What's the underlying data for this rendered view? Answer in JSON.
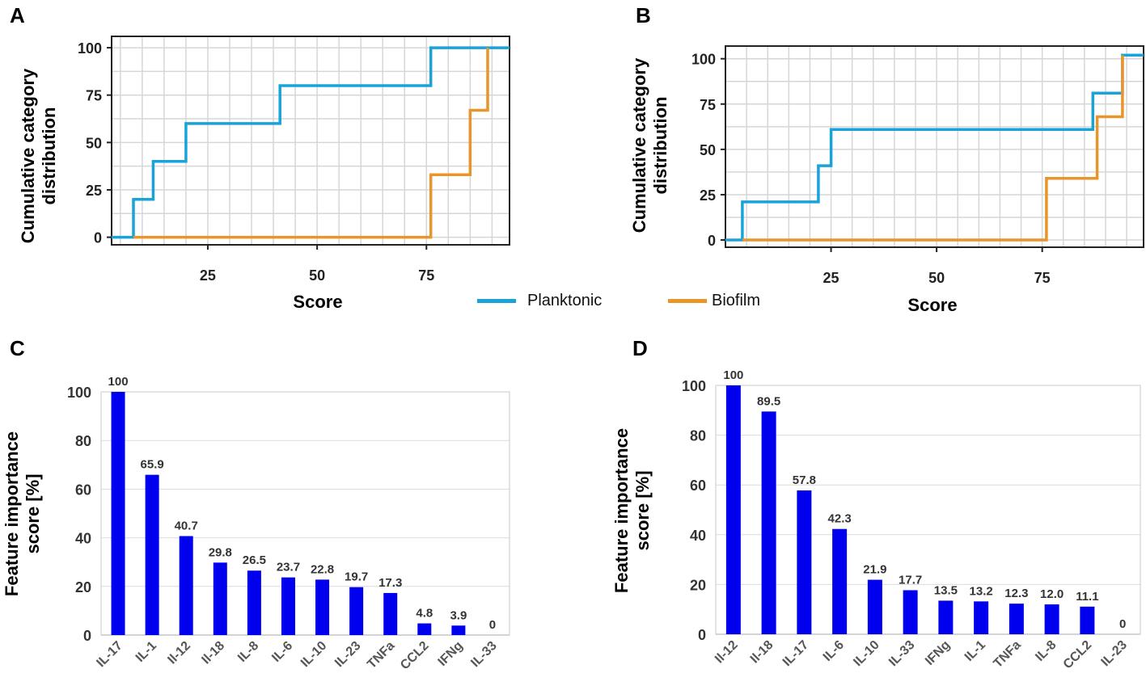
{
  "figure_labels": [
    "A",
    "B",
    "C",
    "D"
  ],
  "legend": {
    "items": [
      {
        "name": "Planktonic",
        "color": "#1aa3d9"
      },
      {
        "name": "Biofilm",
        "color": "#e8952c"
      }
    ]
  },
  "chart_data": [
    {
      "panel": "A",
      "type": "line",
      "step": true,
      "xlabel": "Score",
      "ylabel_lines": [
        "Cumulative category",
        "distribution"
      ],
      "xlim": [
        3,
        94
      ],
      "ylim": [
        -4,
        106
      ],
      "xticks": [
        25,
        50,
        75
      ],
      "yticks": [
        0,
        25,
        50,
        75,
        100
      ],
      "grid": true,
      "series": [
        {
          "name": "Planktonic",
          "color": "#1aa3d9",
          "x": [
            3,
            8,
            8,
            12.5,
            12.5,
            20,
            20,
            41.5,
            41.5,
            76,
            76,
            94
          ],
          "y": [
            0,
            0,
            20,
            20,
            40,
            40,
            60,
            60,
            80,
            80,
            100,
            100
          ]
        },
        {
          "name": "Biofilm",
          "color": "#e8952c",
          "x": [
            8,
            76,
            76,
            85,
            85,
            89,
            89
          ],
          "y": [
            0,
            0,
            33,
            33,
            67,
            67,
            100
          ]
        }
      ]
    },
    {
      "panel": "B",
      "type": "line",
      "step": true,
      "xlabel": "Score",
      "ylabel_lines": [
        "Cumulative category",
        "distribution"
      ],
      "xlim": [
        0,
        99
      ],
      "ylim": [
        -4,
        107
      ],
      "xticks": [
        25,
        50,
        75
      ],
      "yticks": [
        0,
        25,
        50,
        75,
        100
      ],
      "grid": true,
      "series": [
        {
          "name": "Planktonic",
          "color": "#1aa3d9",
          "x": [
            0,
            4,
            4,
            22,
            22,
            25,
            25,
            87,
            87,
            94,
            94,
            99
          ],
          "y": [
            0,
            0,
            21,
            21,
            41,
            41,
            61,
            61,
            81,
            81,
            102,
            102
          ]
        },
        {
          "name": "Biofilm",
          "color": "#e8952c",
          "x": [
            4,
            76,
            76,
            88,
            88,
            94,
            94
          ],
          "y": [
            0,
            0,
            34,
            34,
            68,
            68,
            102
          ]
        }
      ]
    },
    {
      "panel": "C",
      "type": "bar",
      "ylabel_lines": [
        "Feature importance",
        "score [%]"
      ],
      "ylim": [
        0,
        100
      ],
      "yticks": [
        0,
        20,
        40,
        60,
        80,
        100
      ],
      "color": "#0000ee",
      "categories": [
        "IL-17",
        "IL-1",
        "Il-12",
        "Il-18",
        "IL-8",
        "IL-6",
        "IL-10",
        "IL-23",
        "TNFa",
        "CCL2",
        "IFNg",
        "IL-33"
      ],
      "values": [
        100,
        65.9,
        40.7,
        29.8,
        26.5,
        23.7,
        22.8,
        19.7,
        17.3,
        4.8,
        3.9,
        0
      ],
      "labels": [
        "100",
        "65.9",
        "40.7",
        "29.8",
        "26.5",
        "23.7",
        "22.8",
        "19.7",
        "17.3",
        "4.8",
        "3.9",
        "0"
      ]
    },
    {
      "panel": "D",
      "type": "bar",
      "ylabel_lines": [
        "Feature importance",
        "score [%]"
      ],
      "ylim": [
        0,
        100
      ],
      "yticks": [
        0,
        20,
        40,
        60,
        80,
        100
      ],
      "color": "#0000ee",
      "categories": [
        "Il-12",
        "Il-18",
        "IL-17",
        "IL-6",
        "IL-10",
        "IL-33",
        "IFNg",
        "IL-1",
        "TNFa",
        "IL-8",
        "CCL2",
        "IL-23"
      ],
      "values": [
        100,
        89.5,
        57.8,
        42.3,
        21.9,
        17.7,
        13.5,
        13.2,
        12.3,
        12.0,
        11.1,
        0
      ],
      "labels": [
        "100",
        "89.5",
        "57.8",
        "42.3",
        "21.9",
        "17.7",
        "13.5",
        "13.2",
        "12.3",
        "12.0",
        "11.1",
        "0"
      ]
    }
  ]
}
